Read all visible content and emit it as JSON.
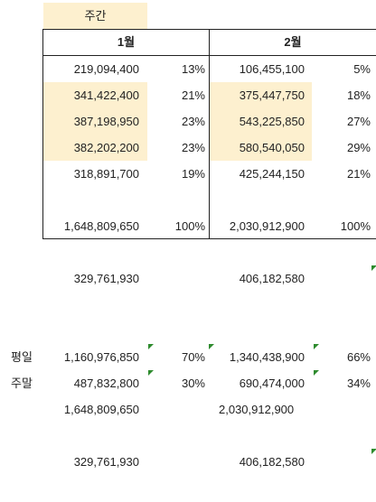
{
  "header": {
    "label": "주간"
  },
  "columns": [
    {
      "month": "1월"
    },
    {
      "month": "2월"
    }
  ],
  "table_rows": [
    {
      "v1": "219,094,400",
      "p1": "13%",
      "v2": "106,455,100",
      "p2": "5%"
    },
    {
      "v1": "341,422,400",
      "p1": "21%",
      "v2": "375,447,750",
      "p2": "18%"
    },
    {
      "v1": "387,198,950",
      "p1": "23%",
      "v2": "543,225,850",
      "p2": "27%"
    },
    {
      "v1": "382,202,200",
      "p1": "23%",
      "v2": "580,540,050",
      "p2": "29%"
    },
    {
      "v1": "318,891,700",
      "p1": "19%",
      "v2": "425,244,150",
      "p2": "21%"
    }
  ],
  "total": {
    "v1": "1,648,809,650",
    "p1": "100%",
    "v2": "2,030,912,900",
    "p2": "100%"
  },
  "average": {
    "v1": "329,761,930",
    "v2": "406,182,580"
  },
  "summary": {
    "weekday": {
      "label": "평일",
      "v1": "1,160,976,850",
      "p1": "70%",
      "v2": "1,340,438,900",
      "p2": "66%"
    },
    "weekend": {
      "label": "주말",
      "v1": "487,832,800",
      "p1": "30%",
      "v2": "690,474,000",
      "p2": "34%"
    },
    "total": {
      "v1": "1,648,809,650",
      "v2": "2,030,912,900"
    },
    "average": {
      "v1": "329,761,930",
      "v2": "406,182,580"
    }
  },
  "colors": {
    "highlight": "#fdf0cf",
    "error_marker": "#2e8b2e"
  }
}
